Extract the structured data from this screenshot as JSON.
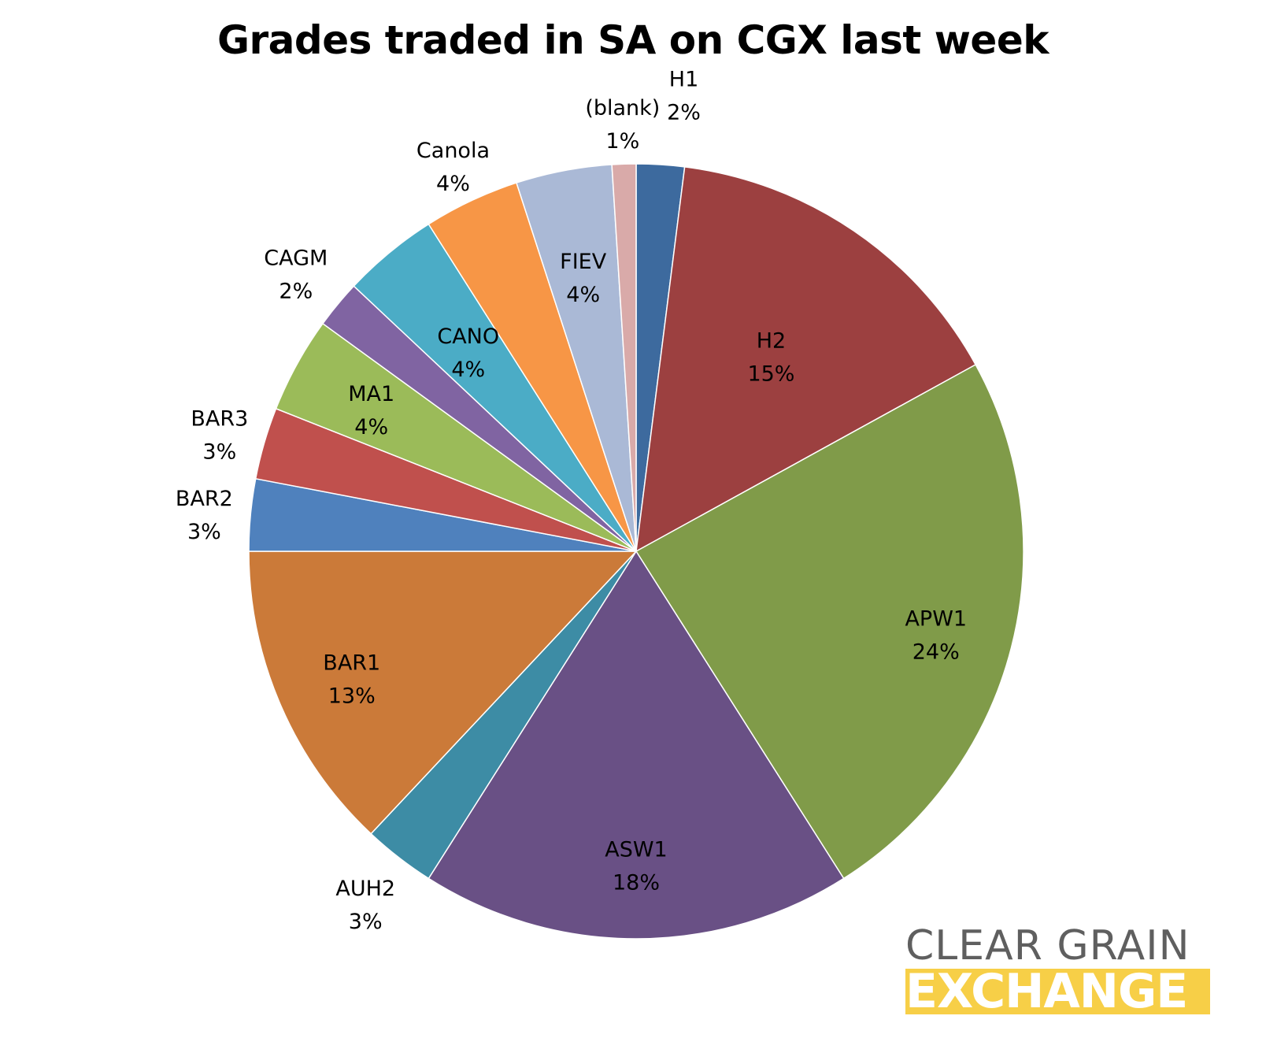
{
  "chart_data": {
    "type": "pie",
    "title": "Grades traded in SA on CGX last week",
    "slices": [
      {
        "label": "H1",
        "value": 2,
        "display": "2%",
        "color": "#3d6a9e"
      },
      {
        "label": "H2",
        "value": 15,
        "display": "15%",
        "color": "#9c4040"
      },
      {
        "label": "APW1",
        "value": 24,
        "display": "24%",
        "color": "#809b49"
      },
      {
        "label": "ASW1",
        "value": 18,
        "display": "18%",
        "color": "#695085"
      },
      {
        "label": "AUH2",
        "value": 3,
        "display": "3%",
        "color": "#3d8ca5"
      },
      {
        "label": "BAR1",
        "value": 13,
        "display": "13%",
        "color": "#cb7a39"
      },
      {
        "label": "BAR2",
        "value": 3,
        "display": "3%",
        "color": "#4f81bd"
      },
      {
        "label": "BAR3",
        "value": 3,
        "display": "3%",
        "color": "#c0504d"
      },
      {
        "label": "MA1",
        "value": 4,
        "display": "4%",
        "color": "#9bbb59"
      },
      {
        "label": "CAGM",
        "value": 2,
        "display": "2%",
        "color": "#8064a2"
      },
      {
        "label": "CANO",
        "value": 4,
        "display": "4%",
        "color": "#4bacc6"
      },
      {
        "label": "Canola",
        "value": 4,
        "display": "4%",
        "color": "#f79646"
      },
      {
        "label": "FIEV",
        "value": 4,
        "display": "4%",
        "color": "#aab9d6"
      },
      {
        "label": "(blank)",
        "value": 1,
        "display": "1%",
        "color": "#d9aaa9"
      }
    ],
    "start_angle": "12 o'clock",
    "direction": "clockwise",
    "legend": "none"
  },
  "logo": {
    "line1": "CLEAR GRAIN",
    "line2": "EXCHANGE",
    "text_color": "#5f5f5f",
    "band_color": "#f7cf47"
  }
}
